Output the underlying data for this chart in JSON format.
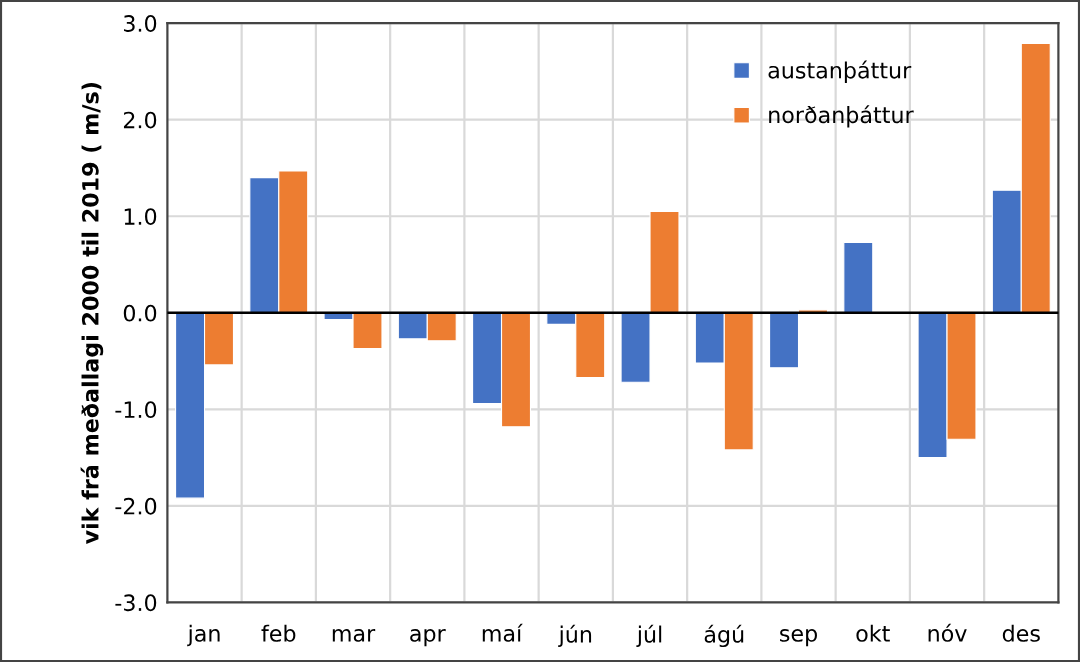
{
  "chart_data": {
    "type": "bar",
    "ylabel": "vik frá meðallagi 2000 til 2019 ( m/s)",
    "categories": [
      "jan",
      "feb",
      "mar",
      "apr",
      "maí",
      "jún",
      "júl",
      "ágú",
      "sep",
      "okt",
      "nóv",
      "des"
    ],
    "series": [
      {
        "name": "austanþáttur",
        "color": "#4472c4",
        "values": [
          -1.92,
          1.4,
          -0.07,
          -0.27,
          -0.94,
          -0.12,
          -0.72,
          -0.52,
          -0.57,
          0.73,
          -1.5,
          1.27
        ]
      },
      {
        "name": "norðanþáttur",
        "color": "#ed7d31",
        "values": [
          -0.54,
          1.47,
          -0.37,
          -0.29,
          -1.18,
          -0.67,
          1.05,
          -1.42,
          0.03,
          null,
          -1.31,
          2.79
        ]
      }
    ],
    "ylim": [
      -3.0,
      3.0
    ],
    "yticks": [
      {
        "value": -3.0,
        "label": "-3.0"
      },
      {
        "value": -2.0,
        "label": "-2.0"
      },
      {
        "value": -1.0,
        "label": "-1.0"
      },
      {
        "value": 0.0,
        "label": "0.0"
      },
      {
        "value": 1.0,
        "label": "1.0"
      },
      {
        "value": 2.0,
        "label": "2.0"
      },
      {
        "value": 3.0,
        "label": "3.0"
      }
    ],
    "grid": true,
    "legend": "top right"
  }
}
